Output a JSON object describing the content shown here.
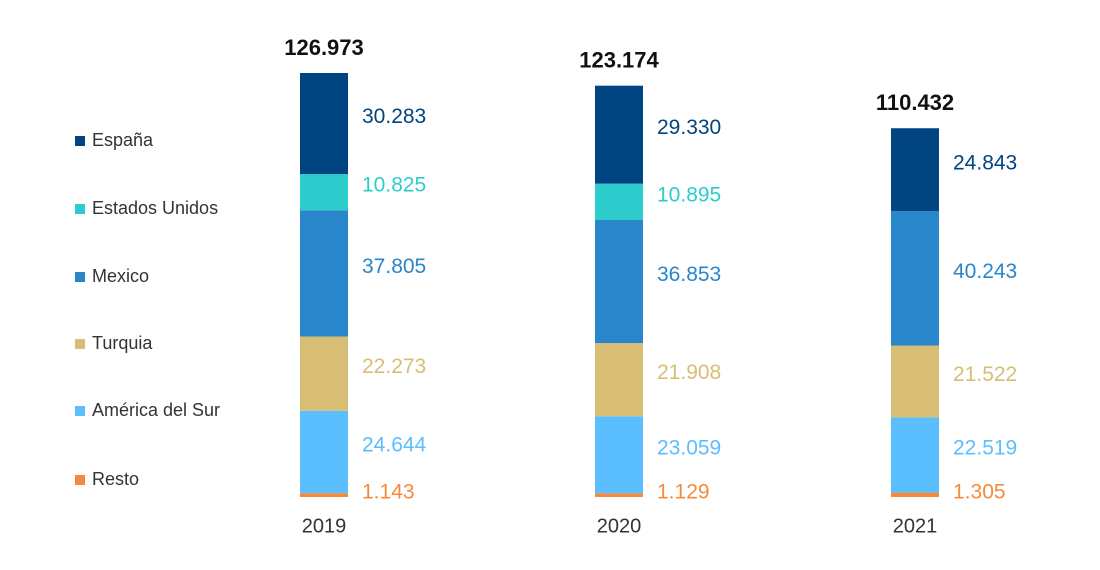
{
  "chart_data": {
    "type": "stacked_bar",
    "categories": [
      "2019",
      "2020",
      "2021"
    ],
    "totals": [
      126.973,
      123.174,
      110.432
    ],
    "series": [
      {
        "name": "España",
        "color": "#004481",
        "values": [
          30.283,
          29.33,
          24.843
        ],
        "value_labels": [
          "30.283",
          "29.330",
          "24.843"
        ]
      },
      {
        "name": "Estados Unidos",
        "color": "#2dcccd",
        "values": [
          10.825,
          10.895,
          null
        ],
        "value_labels": [
          "10.825",
          "10.895",
          null
        ]
      },
      {
        "name": "Mexico",
        "color": "#2a86ca",
        "values": [
          37.805,
          36.853,
          40.243
        ],
        "value_labels": [
          "37.805",
          "36.853",
          "40.243"
        ]
      },
      {
        "name": "Turquia",
        "color": "#d8be75",
        "values": [
          22.273,
          21.908,
          21.522
        ],
        "value_labels": [
          "22.273",
          "21.908",
          "21.522"
        ]
      },
      {
        "name": "América del Sur",
        "color": "#5bbeff",
        "values": [
          24.644,
          23.059,
          22.519
        ],
        "value_labels": [
          "24.644",
          "23.059",
          "22.519"
        ]
      },
      {
        "name": "Resto",
        "color": "#f7893b",
        "values": [
          1.143,
          1.129,
          1.305
        ],
        "value_labels": [
          "1.143",
          "1.129",
          "1.305"
        ]
      }
    ]
  }
}
